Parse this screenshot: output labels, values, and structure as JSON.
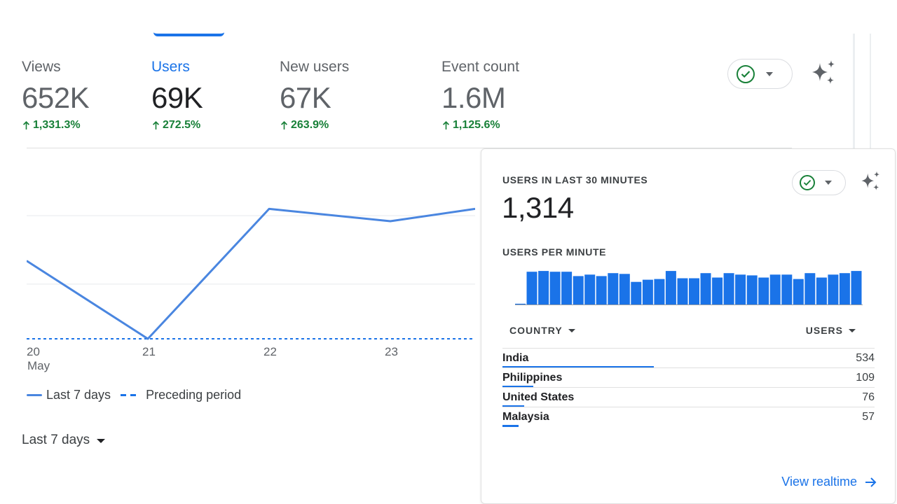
{
  "metrics": [
    {
      "label": "Views",
      "value": "652K",
      "change": "1,331.3%"
    },
    {
      "label": "Users",
      "value": "69K",
      "change": "272.5%"
    },
    {
      "label": "New users",
      "value": "67K",
      "change": "263.9%"
    },
    {
      "label": "Event count",
      "value": "1.6M",
      "change": "1,125.6%"
    }
  ],
  "chart_data": {
    "type": "line",
    "x": [
      "20",
      "21",
      "22",
      "23",
      ""
    ],
    "x_month_label": "May",
    "series": [
      {
        "name": "Last 7 days",
        "values": [
          0.57,
          0.0,
          0.95,
          0.86,
          0.95
        ]
      },
      {
        "name": "Preceding period",
        "values": [
          0.0,
          0.0,
          0.0,
          0.0,
          0.0
        ]
      }
    ],
    "ylim": [
      0,
      1.3
    ],
    "grid": true
  },
  "legend": {
    "current": "Last 7 days",
    "previous": "Preceding period"
  },
  "period": {
    "label": "Last 7 days"
  },
  "colors": {
    "accent": "#1a73e8",
    "line": "#4a86e0",
    "positive": "#188038"
  },
  "realtime": {
    "title": "USERS IN LAST 30 MINUTES",
    "total": "1,314",
    "per_minute_title": "USERS PER MINUTE",
    "per_minute": [
      2,
      46,
      47,
      46,
      46,
      40,
      42,
      40,
      44,
      43,
      32,
      35,
      36,
      47,
      37,
      37,
      44,
      38,
      44,
      42,
      41,
      38,
      42,
      42,
      36,
      44,
      38,
      42,
      44,
      47
    ],
    "country_header": "COUNTRY",
    "users_header": "USERS",
    "countries": [
      {
        "name": "India",
        "users": "534",
        "share": 1.0
      },
      {
        "name": "Philippines",
        "users": "109",
        "share": 0.204
      },
      {
        "name": "United States",
        "users": "76",
        "share": 0.142
      },
      {
        "name": "Malaysia",
        "users": "57",
        "share": 0.107
      }
    ],
    "view_link": "View realtime"
  }
}
